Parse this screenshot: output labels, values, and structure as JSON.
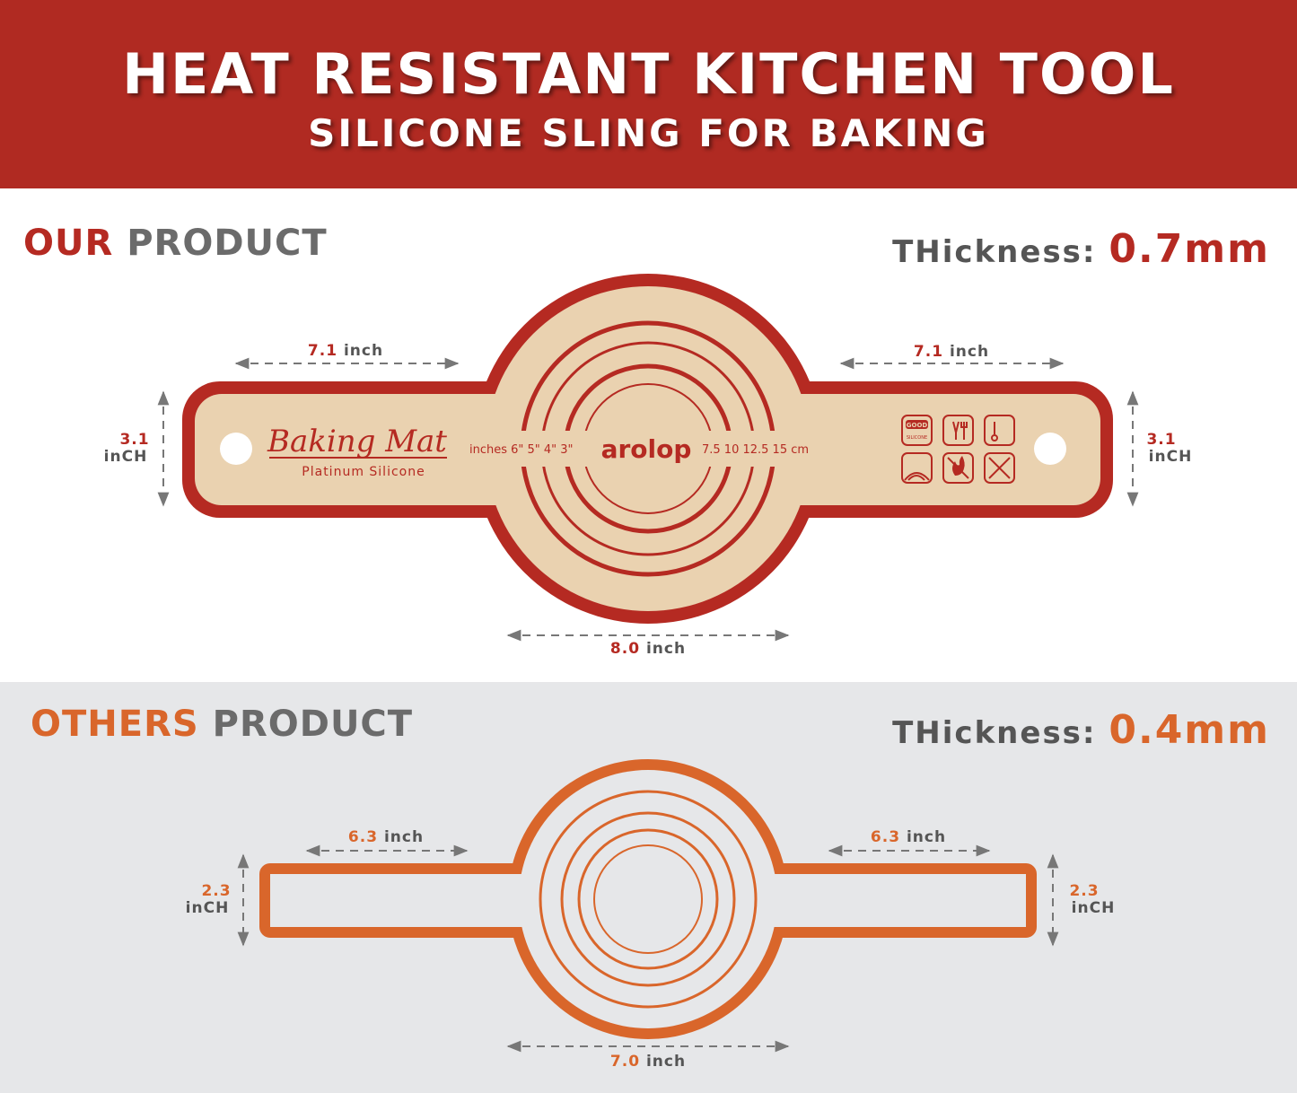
{
  "header": {
    "title": "HEAT RESISTANT KITCHEN TOOL",
    "subtitle": "SILICONE SLING FOR BAKING"
  },
  "colors": {
    "header": "#b02a22",
    "ours": "#b52a22",
    "others": "#d9662b",
    "gray": "#6b6b6b",
    "mat": "#ead2b0",
    "bottom_bg": "#e6e7e9"
  },
  "ours": {
    "label_accent": "OUR",
    "label_rest": " PRODUCT",
    "thickness_label": "THickness: ",
    "thickness_value": "0.7mm",
    "dims": {
      "left_width": "7.1",
      "right_width": "7.1",
      "left_height": "3.1",
      "right_height": "3.1",
      "diameter": "8.0",
      "unit": "inCH",
      "unit_lower": "inch"
    },
    "mat": {
      "brand_script": "Baking  Mat",
      "brand_sub": "Platinum Silicone",
      "inches": "inches 6\"   5\"  4\"   3\"",
      "logo": "arolop",
      "cm": "7.5 10 12.5 15  cm",
      "icon_good": "GOOD",
      "icon_silicone": "SILICONE"
    },
    "icons": [
      "good-silicone-icon",
      "food-safe-icon",
      "thermometer-icon",
      "pattern-icon",
      "no-fire-icon",
      "no-knife-icon"
    ]
  },
  "others": {
    "label_accent": "OTHERS",
    "label_rest": " PRODUCT",
    "thickness_label": "THickness: ",
    "thickness_value": "0.4mm",
    "dims": {
      "left_width": "6.3",
      "right_width": "6.3",
      "left_height": "2.3",
      "right_height": "2.3",
      "diameter": "7.0",
      "unit": "inCH",
      "unit_lower": "inch"
    }
  }
}
